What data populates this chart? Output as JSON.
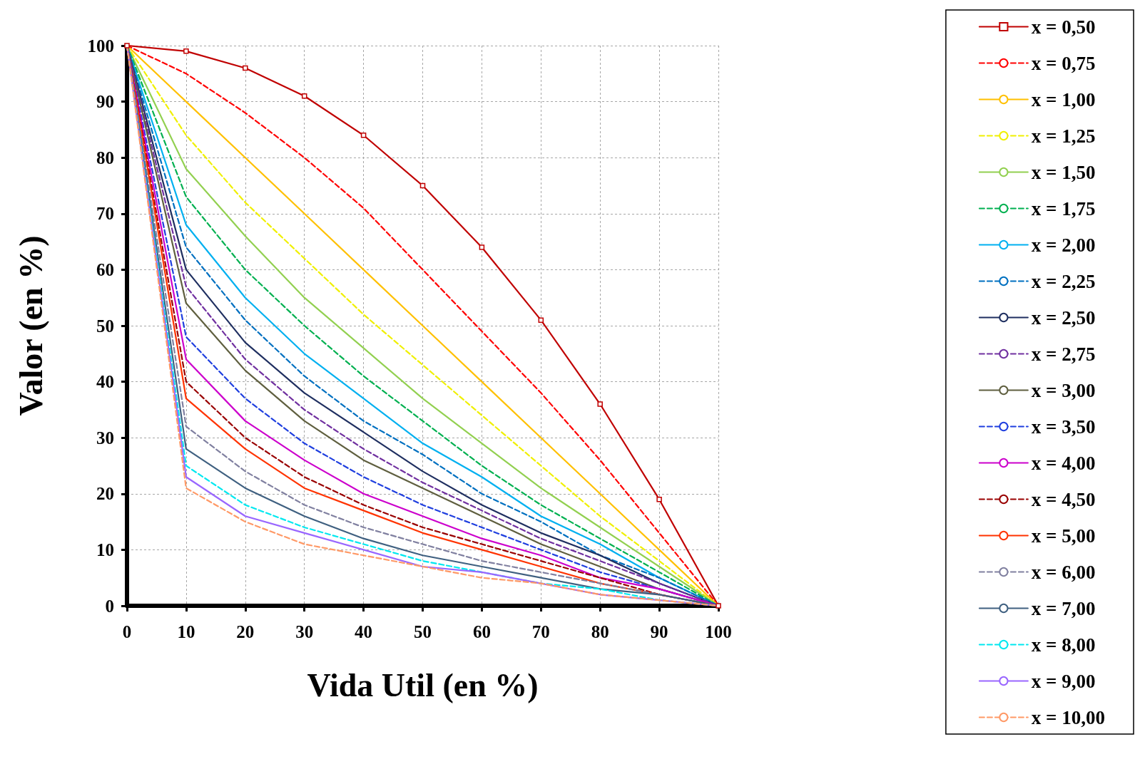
{
  "chart_data": {
    "type": "line",
    "xlabel": "Vida Util (en %)",
    "ylabel": "Valor (en %)",
    "x": [
      0,
      10,
      20,
      30,
      40,
      50,
      60,
      70,
      80,
      90,
      100
    ],
    "xlim": [
      0,
      100
    ],
    "xticks": [
      0,
      10,
      20,
      30,
      40,
      50,
      60,
      70,
      80,
      90,
      100
    ],
    "ylim": [
      0,
      100
    ],
    "yticks": [
      0,
      10,
      20,
      30,
      40,
      50,
      60,
      70,
      80,
      90,
      100
    ],
    "grid": true,
    "legend": "right",
    "series": [
      {
        "name": "x = 0,50",
        "color": "#c00000",
        "line_style": "solid",
        "marker": "square",
        "values": [
          100,
          99,
          96,
          91,
          84,
          75,
          64,
          51,
          36,
          19,
          0
        ]
      },
      {
        "name": "x = 0,75",
        "color": "#ff0000",
        "line_style": "dashed",
        "values": [
          100,
          95,
          88,
          80,
          71,
          60,
          49,
          38,
          26,
          13,
          0
        ]
      },
      {
        "name": "x = 1,00",
        "color": "#ffc000",
        "line_style": "solid",
        "values": [
          100,
          90,
          80,
          70,
          60,
          50,
          40,
          30,
          20,
          10,
          0
        ]
      },
      {
        "name": "x = 1,25",
        "color": "#f0f000",
        "line_style": "dashed",
        "values": [
          100,
          84,
          72,
          62,
          52,
          43,
          34,
          25,
          16,
          8,
          0
        ]
      },
      {
        "name": "x = 1,50",
        "color": "#92d050",
        "line_style": "solid",
        "values": [
          100,
          78,
          66,
          55,
          46,
          37,
          29,
          21,
          14,
          7,
          0
        ]
      },
      {
        "name": "x = 1,75",
        "color": "#00b050",
        "line_style": "dashed",
        "values": [
          100,
          73,
          60,
          50,
          41,
          33,
          25,
          18,
          12,
          6,
          0
        ]
      },
      {
        "name": "x = 2,00",
        "color": "#00b0f0",
        "line_style": "solid",
        "values": [
          100,
          68,
          55,
          45,
          37,
          29,
          23,
          16,
          11,
          5,
          0
        ]
      },
      {
        "name": "x = 2,25",
        "color": "#0070c0",
        "line_style": "dashed",
        "values": [
          100,
          64,
          51,
          41,
          33,
          27,
          20,
          15,
          9,
          5,
          0
        ]
      },
      {
        "name": "x = 2,50",
        "color": "#1f2f60",
        "line_style": "solid",
        "values": [
          100,
          60,
          47,
          38,
          31,
          24,
          18,
          13,
          9,
          4,
          0
        ]
      },
      {
        "name": "x = 2,75",
        "color": "#7030a0",
        "line_style": "dashed",
        "values": [
          100,
          57,
          44,
          35,
          28,
          22,
          17,
          12,
          8,
          4,
          0
        ]
      },
      {
        "name": "x = 3,00",
        "color": "#5f5f3f",
        "line_style": "solid",
        "values": [
          100,
          54,
          42,
          33,
          26,
          21,
          16,
          11,
          7,
          3,
          0
        ]
      },
      {
        "name": "x = 3,50",
        "color": "#1f3fdf",
        "line_style": "dashed",
        "values": [
          100,
          48,
          37,
          29,
          23,
          18,
          14,
          10,
          6,
          3,
          0
        ]
      },
      {
        "name": "x = 4,00",
        "color": "#cc00cc",
        "line_style": "solid",
        "values": [
          100,
          44,
          33,
          26,
          20,
          16,
          12,
          9,
          5,
          3,
          0
        ]
      },
      {
        "name": "x = 4,50",
        "color": "#990000",
        "line_style": "dashed",
        "values": [
          100,
          40,
          30,
          23,
          18,
          14,
          11,
          8,
          5,
          2,
          0
        ]
      },
      {
        "name": "x = 5,00",
        "color": "#ff3300",
        "line_style": "solid",
        "values": [
          100,
          37,
          28,
          21,
          17,
          13,
          10,
          7,
          4,
          2,
          0
        ]
      },
      {
        "name": "x = 6,00",
        "color": "#8080a0",
        "line_style": "dashed",
        "values": [
          100,
          32,
          24,
          18,
          14,
          11,
          8,
          6,
          4,
          2,
          0
        ]
      },
      {
        "name": "x = 7,00",
        "color": "#3f6080",
        "line_style": "solid",
        "values": [
          100,
          28,
          21,
          16,
          12,
          9,
          7,
          5,
          3,
          2,
          0
        ]
      },
      {
        "name": "x = 8,00",
        "color": "#00e8f0",
        "line_style": "dashed",
        "values": [
          100,
          25,
          18,
          14,
          11,
          8,
          6,
          4,
          3,
          1,
          0
        ]
      },
      {
        "name": "x = 9,00",
        "color": "#9966ff",
        "line_style": "solid",
        "values": [
          100,
          23,
          16,
          13,
          10,
          7,
          6,
          4,
          2,
          1,
          0
        ]
      },
      {
        "name": "x = 10,00",
        "color": "#ff9966",
        "line_style": "dashed",
        "values": [
          100,
          21,
          15,
          11,
          9,
          7,
          5,
          4,
          2,
          1,
          0
        ]
      }
    ]
  }
}
